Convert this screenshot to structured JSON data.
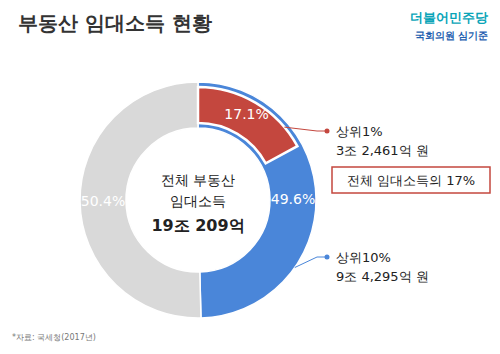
{
  "chart_data": {
    "type": "pie",
    "title": "부동산 임대소득 현황",
    "logo": [
      "더불어민주당",
      "국회의원 심기준"
    ],
    "center_text": [
      "전체 부동산",
      "임대소득",
      "19조 209억"
    ],
    "values": [
      49.6,
      50.4
    ],
    "value_labels": [
      "49.6%",
      "50.4%"
    ],
    "colors": [
      "#4a86d9",
      "#d9d9d9"
    ],
    "data_labels": true,
    "sub_slice": {
      "value": 17.1,
      "value_label": "17.1%",
      "color": "#c4473e"
    },
    "annotations": [
      {
        "label": "상위1%",
        "amount": "3조 2,461억 원",
        "note": "전체 임대소득의 17%"
      },
      {
        "label": "상위10%",
        "amount": "9조 4,295억 원"
      }
    ],
    "source": "*자료: 국세청(2017년)"
  }
}
